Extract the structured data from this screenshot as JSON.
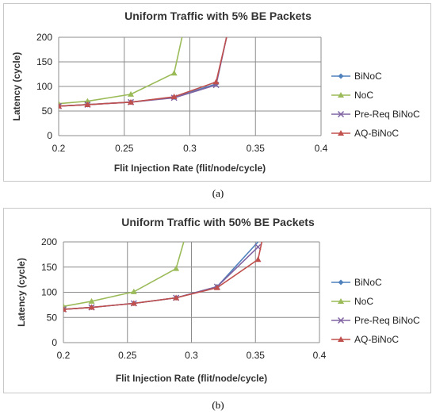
{
  "captions": [
    "(a)",
    "(b)"
  ],
  "chart_data": [
    {
      "type": "line",
      "title": "Uniform Traffic with 5% BE Packets",
      "xlabel": "Flit Injection Rate (flit/node/cycle)",
      "ylabel": "Latency (cycle)",
      "xlim": [
        0.2,
        0.4
      ],
      "ylim": [
        0,
        200
      ],
      "xticks": [
        "0.2",
        "0.25",
        "0.3",
        "0.35",
        "0.4"
      ],
      "yticks": [
        "0",
        "50",
        "100",
        "150",
        "200"
      ],
      "grid": true,
      "legend_position": "right",
      "series": [
        {
          "name": "BiNoC",
          "color": "#4f81bd",
          "marker": "diamond",
          "x": [
            0.2,
            0.222,
            0.255,
            0.288,
            0.32,
            0.328
          ],
          "y": [
            60,
            63,
            68,
            78,
            105,
            200
          ]
        },
        {
          "name": "NoC",
          "color": "#9bbb59",
          "marker": "triangle",
          "x": [
            0.2,
            0.222,
            0.255,
            0.288,
            0.294
          ],
          "y": [
            65,
            70,
            84,
            127,
            200
          ]
        },
        {
          "name": "Pre-Req BiNoC",
          "color": "#8064a2",
          "marker": "x",
          "x": [
            0.2,
            0.222,
            0.255,
            0.288,
            0.32,
            0.328
          ],
          "y": [
            60,
            63,
            68,
            77,
            103,
            200
          ]
        },
        {
          "name": "AQ-BiNoC",
          "color": "#c0504d",
          "marker": "triangle",
          "x": [
            0.2,
            0.222,
            0.255,
            0.288,
            0.32,
            0.328
          ],
          "y": [
            60,
            63,
            68,
            79,
            109,
            200
          ]
        }
      ]
    },
    {
      "type": "line",
      "title": "Uniform Traffic with 50% BE Packets",
      "xlabel": "Flit Injection Rate (flit/node/cycle)",
      "ylabel": "Latency (cycle)",
      "xlim": [
        0.2,
        0.4
      ],
      "ylim": [
        0,
        200
      ],
      "xticks": [
        "0.2",
        "0.25",
        "0.3",
        "0.35",
        "0.4"
      ],
      "yticks": [
        "0",
        "50",
        "100",
        "150",
        "200"
      ],
      "grid": true,
      "legend_position": "right",
      "series": [
        {
          "name": "BiNoC",
          "color": "#4f81bd",
          "marker": "diamond",
          "x": [
            0.2,
            0.222,
            0.255,
            0.288,
            0.32,
            0.352
          ],
          "y": [
            66,
            70,
            78,
            89,
            111,
            200
          ]
        },
        {
          "name": "NoC",
          "color": "#9bbb59",
          "marker": "triangle",
          "x": [
            0.2,
            0.222,
            0.255,
            0.288,
            0.294
          ],
          "y": [
            72,
            82,
            101,
            147,
            200
          ]
        },
        {
          "name": "Pre-Req BiNoC",
          "color": "#8064a2",
          "marker": "x",
          "x": [
            0.2,
            0.222,
            0.255,
            0.288,
            0.32,
            0.352
          ],
          "y": [
            66,
            70,
            78,
            89,
            111,
            190
          ]
        },
        {
          "name": "AQ-BiNoC",
          "color": "#c0504d",
          "marker": "triangle",
          "x": [
            0.2,
            0.222,
            0.255,
            0.288,
            0.32,
            0.352,
            0.355
          ],
          "y": [
            66,
            70,
            78,
            89,
            109,
            165,
            200
          ]
        }
      ]
    }
  ]
}
